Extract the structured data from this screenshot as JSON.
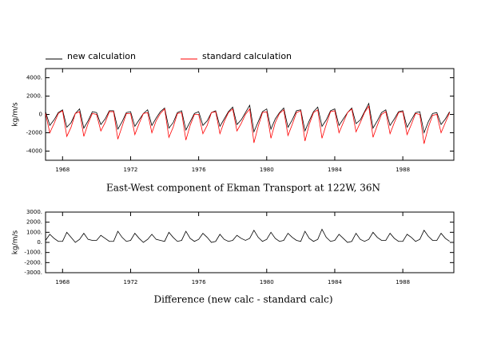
{
  "chart_data": [
    {
      "type": "line",
      "title": "East-West component of Ekman Transport at 122W, 36N",
      "y_label": "kg/m/s",
      "legend": "top-left",
      "xlim": [
        1967,
        1991
      ],
      "xticks": [
        1968,
        1972,
        1976,
        1980,
        1984,
        1988
      ],
      "ylim": [
        -5000,
        5000
      ],
      "yticks": [
        {
          "value": 4000,
          "label": "4000."
        },
        {
          "value": 2000,
          "label": "2000."
        },
        0,
        -2000,
        -4000
      ],
      "x": [
        1967,
        1967.25,
        1967.5,
        1967.75,
        1968,
        1968.25,
        1968.5,
        1968.75,
        1969,
        1969.25,
        1969.5,
        1969.75,
        1970,
        1970.25,
        1970.5,
        1970.75,
        1971,
        1971.25,
        1971.5,
        1971.75,
        1972,
        1972.25,
        1972.5,
        1972.75,
        1973,
        1973.25,
        1973.5,
        1973.75,
        1974,
        1974.25,
        1974.5,
        1974.75,
        1975,
        1975.25,
        1975.5,
        1975.75,
        1976,
        1976.25,
        1976.5,
        1976.75,
        1977,
        1977.25,
        1977.5,
        1977.75,
        1978,
        1978.25,
        1978.5,
        1978.75,
        1979,
        1979.25,
        1979.5,
        1979.75,
        1980,
        1980.25,
        1980.5,
        1980.75,
        1981,
        1981.25,
        1981.5,
        1981.75,
        1982,
        1982.25,
        1982.5,
        1982.75,
        1983,
        1983.25,
        1983.5,
        1983.75,
        1984,
        1984.25,
        1984.5,
        1984.75,
        1985,
        1985.25,
        1985.5,
        1985.75,
        1986,
        1986.25,
        1986.5,
        1986.75,
        1987,
        1987.25,
        1987.5,
        1987.75,
        1988,
        1988.25,
        1988.5,
        1988.75,
        1989,
        1989.25,
        1989.5,
        1989.75,
        1990,
        1990.25,
        1990.5,
        1990.75
      ],
      "series": [
        {
          "name": "new calculation",
          "color": "#000000",
          "values": [
            300,
            -1200,
            -600,
            200,
            500,
            -1400,
            -900,
            100,
            600,
            -1500,
            -700,
            300,
            200,
            -1100,
            -500,
            400,
            400,
            -1600,
            -800,
            200,
            300,
            -1300,
            -600,
            100,
            500,
            -1200,
            -400,
            300,
            700,
            -1500,
            -900,
            200,
            400,
            -1700,
            -800,
            100,
            300,
            -1200,
            -700,
            200,
            400,
            -1300,
            -500,
            300,
            800,
            -1100,
            -600,
            200,
            1000,
            -1900,
            -800,
            300,
            600,
            -1600,
            -500,
            200,
            700,
            -1400,
            -600,
            400,
            500,
            -1800,
            -700,
            300,
            800,
            -1300,
            -600,
            400,
            600,
            -1200,
            -500,
            200,
            700,
            -1000,
            -600,
            300,
            1200,
            -1500,
            -700,
            200,
            500,
            -1200,
            -500,
            300,
            400,
            -1400,
            -600,
            200,
            300,
            -2000,
            -800,
            100,
            200,
            -1100,
            -500,
            300
          ]
        },
        {
          "name": "standard calculation",
          "color": "#ff0000",
          "values": [
            100,
            -2000,
            -1000,
            100,
            400,
            -2400,
            -1400,
            100,
            300,
            -2400,
            -1000,
            100,
            0,
            -1800,
            -900,
            300,
            300,
            -2700,
            -1300,
            100,
            100,
            -2200,
            -1000,
            100,
            200,
            -2000,
            -700,
            100,
            600,
            -2500,
            -1400,
            100,
            200,
            -2800,
            -1200,
            0,
            0,
            -2100,
            -1200,
            200,
            300,
            -2100,
            -800,
            200,
            600,
            -1800,
            -1000,
            0,
            600,
            -3100,
            -1300,
            200,
            300,
            -2600,
            -900,
            100,
            500,
            -2300,
            -1100,
            200,
            400,
            -2900,
            -1100,
            200,
            500,
            -2600,
            -1100,
            300,
            400,
            -2000,
            -900,
            200,
            600,
            -1900,
            -900,
            200,
            900,
            -2500,
            -1200,
            0,
            300,
            -2100,
            -900,
            200,
            300,
            -2200,
            -1100,
            100,
            0,
            -3200,
            -1400,
            -100,
            0,
            -2000,
            -900,
            200
          ]
        }
      ]
    },
    {
      "type": "line",
      "title": "Difference (new calc - standard calc)",
      "y_label": "kg/m/s",
      "xlim": [
        1967,
        1991
      ],
      "xticks": [
        1968,
        1972,
        1976,
        1980,
        1984,
        1988
      ],
      "ylim": [
        -3000,
        3000
      ],
      "yticks": [
        {
          "value": 3000,
          "label": "3000."
        },
        {
          "value": 2000,
          "label": "2000."
        },
        {
          "value": 1000,
          "label": "1000."
        },
        {
          "value": 0,
          "label": "0."
        },
        {
          "value": -1000,
          "label": "-1000."
        },
        {
          "value": -2000,
          "label": "-2000."
        },
        {
          "value": -3000,
          "label": "-3000."
        }
      ],
      "x": [
        1967,
        1967.25,
        1967.5,
        1967.75,
        1968,
        1968.25,
        1968.5,
        1968.75,
        1969,
        1969.25,
        1969.5,
        1969.75,
        1970,
        1970.25,
        1970.5,
        1970.75,
        1971,
        1971.25,
        1971.5,
        1971.75,
        1972,
        1972.25,
        1972.5,
        1972.75,
        1973,
        1973.25,
        1973.5,
        1973.75,
        1974,
        1974.25,
        1974.5,
        1974.75,
        1975,
        1975.25,
        1975.5,
        1975.75,
        1976,
        1976.25,
        1976.5,
        1976.75,
        1977,
        1977.25,
        1977.5,
        1977.75,
        1978,
        1978.25,
        1978.5,
        1978.75,
        1979,
        1979.25,
        1979.5,
        1979.75,
        1980,
        1980.25,
        1980.5,
        1980.75,
        1981,
        1981.25,
        1981.5,
        1981.75,
        1982,
        1982.25,
        1982.5,
        1982.75,
        1983,
        1983.25,
        1983.5,
        1983.75,
        1984,
        1984.25,
        1984.5,
        1984.75,
        1985,
        1985.25,
        1985.5,
        1985.75,
        1986,
        1986.25,
        1986.5,
        1986.75,
        1987,
        1987.25,
        1987.5,
        1987.75,
        1988,
        1988.25,
        1988.5,
        1988.75,
        1989,
        1989.25,
        1989.5,
        1989.75,
        1990,
        1990.25,
        1990.5,
        1990.75
      ],
      "color": "#000000",
      "values": [
        200,
        800,
        400,
        100,
        100,
        1000,
        500,
        0,
        300,
        900,
        300,
        200,
        200,
        700,
        400,
        100,
        100,
        1100,
        500,
        100,
        200,
        900,
        400,
        0,
        300,
        800,
        300,
        200,
        100,
        1000,
        500,
        100,
        200,
        1100,
        400,
        100,
        300,
        900,
        500,
        0,
        100,
        800,
        300,
        100,
        200,
        700,
        400,
        200,
        400,
        1200,
        500,
        100,
        300,
        1000,
        400,
        100,
        200,
        900,
        500,
        200,
        100,
        1100,
        400,
        100,
        300,
        1300,
        500,
        100,
        200,
        800,
        400,
        0,
        100,
        900,
        300,
        100,
        300,
        1000,
        500,
        200,
        200,
        900,
        400,
        100,
        100,
        800,
        500,
        100,
        300,
        1200,
        600,
        200,
        200,
        900,
        400,
        100
      ]
    }
  ]
}
